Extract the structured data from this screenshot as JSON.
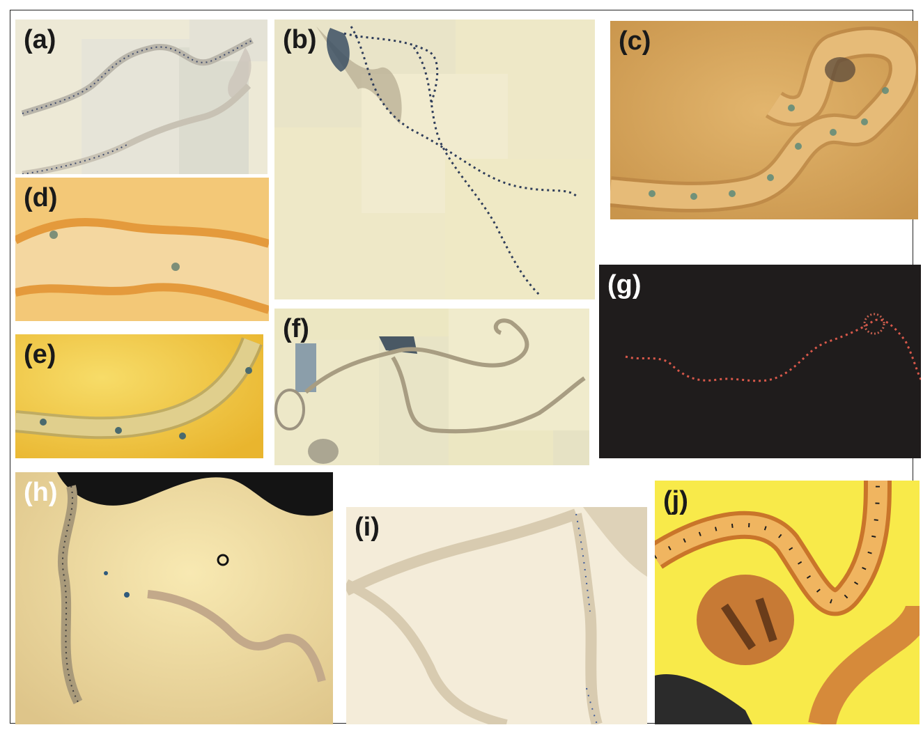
{
  "figure": {
    "panels": [
      {
        "id": "a",
        "label": "(a)"
      },
      {
        "id": "b",
        "label": "(b)"
      },
      {
        "id": "c",
        "label": "(c)"
      },
      {
        "id": "d",
        "label": "(d)"
      },
      {
        "id": "e",
        "label": "(e)"
      },
      {
        "id": "f",
        "label": "(f)"
      },
      {
        "id": "g",
        "label": "(g)"
      },
      {
        "id": "h",
        "label": "(h)"
      },
      {
        "id": "i",
        "label": "(i)"
      },
      {
        "id": "j",
        "label": "(j)"
      }
    ]
  },
  "colors": {
    "background": "#ffffff",
    "label_dark": "#1a1a1a",
    "label_light": "#ffffff",
    "nuclei_blue": "#2c3a5e",
    "nuclei_red": "#d8584a",
    "tissue_dark": "#141414"
  }
}
